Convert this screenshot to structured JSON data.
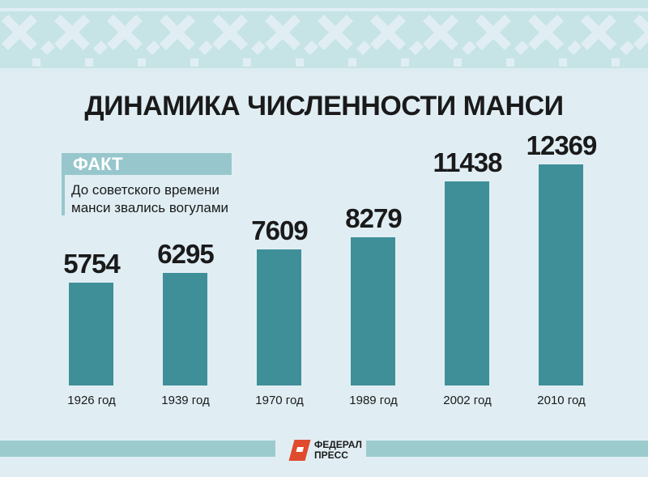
{
  "title": "ДИНАМИКА ЧИСЛЕННОСТИ МАНСИ",
  "fact": {
    "label": "ФАКТ",
    "line1": "До советского времени",
    "line2": "манси звались вогулами"
  },
  "colors": {
    "bar": "#3f8f98",
    "background": "#e0eef4",
    "ornament": "#c6e3e5",
    "fact_header": "#97c7cc",
    "logo_accent": "#e04a2f"
  },
  "logo": {
    "line1": "ФЕДЕРАЛ",
    "line2": "ПРЕСС"
  },
  "chart_data": {
    "type": "bar",
    "title": "ДИНАМИКА ЧИСЛЕННОСТИ МАНСИ",
    "categories": [
      "1926 год",
      "1939 год",
      "1970 год",
      "1989 год",
      "2002 год",
      "2010 год"
    ],
    "values": [
      5754,
      6295,
      7609,
      8279,
      11438,
      12369
    ],
    "labels": [
      "5754",
      "6295",
      "7609",
      "8279",
      "11438",
      "12369"
    ],
    "xlabel": "",
    "ylabel": "",
    "grid": false,
    "legend": null
  }
}
